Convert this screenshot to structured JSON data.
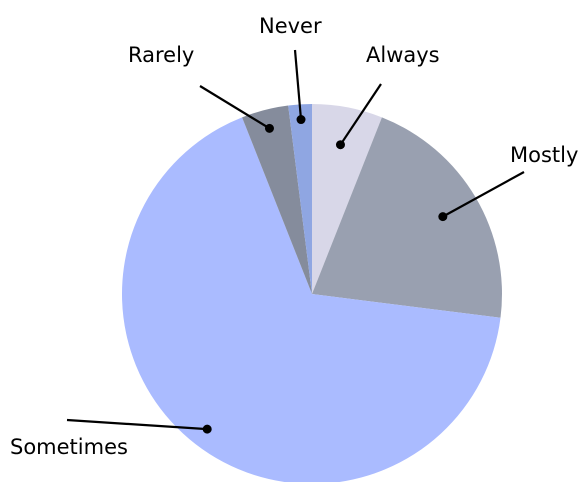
{
  "chart_data": {
    "type": "pie",
    "slices": [
      {
        "label": "Always",
        "value": 6,
        "color": "#d8d7e8"
      },
      {
        "label": "Mostly",
        "value": 21,
        "color": "#99a0b0"
      },
      {
        "label": "Sometimes",
        "value": 67,
        "color": "#aabbff"
      },
      {
        "label": "Rarely",
        "value": 4,
        "color": "#858c9c"
      },
      {
        "label": "Never",
        "value": 2,
        "color": "#8fa6e2"
      }
    ],
    "start_angle_deg": 0,
    "direction": "clockwise",
    "legend": "none (labels with leader lines)"
  }
}
